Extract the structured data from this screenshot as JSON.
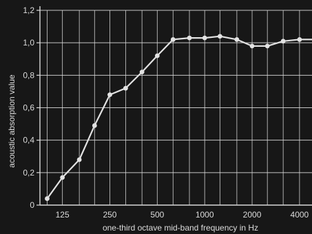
{
  "chart_data": {
    "type": "line",
    "title": "",
    "xlabel": "one-third octave mid-band frequency in Hz",
    "ylabel": "acoustic absorption value",
    "x_scale": "log",
    "x_ticks": [
      {
        "label": "125",
        "value": 125
      },
      {
        "label": "250",
        "value": 250
      },
      {
        "label": "500",
        "value": 500
      },
      {
        "label": "1000",
        "value": 1000
      },
      {
        "label": "2000",
        "value": 2000
      },
      {
        "label": "4000",
        "value": 4000
      }
    ],
    "y_ticks": [
      {
        "label": "0",
        "value": 0
      },
      {
        "label": "0,2",
        "value": 0.2
      },
      {
        "label": "0,4",
        "value": 0.4
      },
      {
        "label": "0,6",
        "value": 0.6
      },
      {
        "label": "0,8",
        "value": 0.8
      },
      {
        "label": "1,0",
        "value": 1.0
      },
      {
        "label": "1,2",
        "value": 1.2
      }
    ],
    "ylim": [
      0,
      1.2
    ],
    "xlim": [
      90,
      4800
    ],
    "grid": true,
    "series": [
      {
        "x": [
          100,
          125,
          160,
          200,
          250,
          315,
          400,
          500,
          630,
          800,
          1000,
          1250,
          1600,
          2000,
          2500,
          3150,
          4000,
          5000
        ],
        "y": [
          0.04,
          0.17,
          0.28,
          0.49,
          0.68,
          0.72,
          0.82,
          0.92,
          1.02,
          1.03,
          1.03,
          1.04,
          1.02,
          0.98,
          0.98,
          1.01,
          1.02,
          1.02
        ]
      }
    ],
    "colors": {
      "background": "#171717",
      "grid": "#d9d9d9",
      "line": "#e2e2e2",
      "text": "#dcdcdc"
    }
  }
}
